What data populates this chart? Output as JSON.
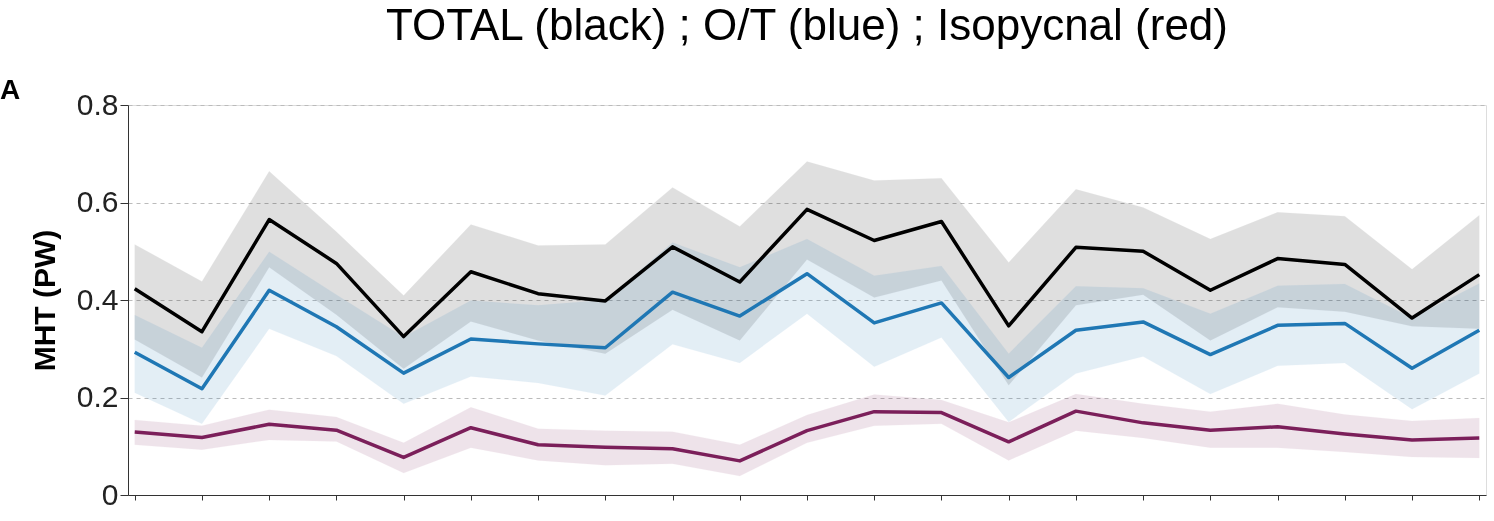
{
  "chart_data": {
    "type": "line",
    "title": "TOTAL (black) ; O/T (blue) ; Isopycnal (red)",
    "ylabel": "MHT (PW)",
    "annotations": [
      "A"
    ],
    "categories": [
      null,
      null,
      null,
      null,
      null,
      null,
      null,
      null,
      null,
      null,
      null,
      null,
      null,
      null,
      null,
      null,
      null,
      null,
      null,
      null,
      null
    ],
    "series": [
      {
        "color": "#000000",
        "values": [
          0.423,
          0.335,
          0.565,
          0.475,
          0.325,
          0.458,
          0.413,
          0.398,
          0.509,
          0.437,
          0.586,
          0.522,
          0.561,
          0.347,
          0.508,
          0.5,
          0.42,
          0.485,
          0.473,
          0.363,
          0.452
        ],
        "upper": [
          0.514,
          0.438,
          0.664,
          0.54,
          0.409,
          0.555,
          0.512,
          0.514,
          0.631,
          0.551,
          0.684,
          0.645,
          0.65,
          0.477,
          0.627,
          0.59,
          0.525,
          0.58,
          0.572,
          0.463,
          0.574
        ],
        "lower": [
          0.319,
          0.241,
          0.467,
          0.37,
          0.259,
          0.356,
          0.317,
          0.29,
          0.38,
          0.317,
          0.483,
          0.405,
          0.44,
          0.225,
          0.389,
          0.411,
          0.317,
          0.385,
          0.376,
          0.346,
          0.341
        ]
      },
      {
        "color": "#1f77b4",
        "values": [
          0.293,
          0.218,
          0.42,
          0.345,
          0.25,
          0.32,
          0.31,
          0.302,
          0.416,
          0.367,
          0.454,
          0.353,
          0.394,
          0.241,
          0.338,
          0.355,
          0.288,
          0.348,
          0.352,
          0.26,
          0.338
        ],
        "upper": [
          0.369,
          0.302,
          0.499,
          0.411,
          0.324,
          0.399,
          0.389,
          0.4,
          0.518,
          0.467,
          0.525,
          0.45,
          0.47,
          0.29,
          0.428,
          0.424,
          0.372,
          0.429,
          0.433,
          0.363,
          0.434
        ],
        "lower": [
          0.21,
          0.146,
          0.341,
          0.285,
          0.187,
          0.243,
          0.23,
          0.204,
          0.309,
          0.271,
          0.372,
          0.263,
          0.323,
          0.15,
          0.249,
          0.284,
          0.207,
          0.265,
          0.271,
          0.176,
          0.249
        ]
      },
      {
        "color": "#7b1f5a",
        "values": [
          0.129,
          0.118,
          0.145,
          0.133,
          0.077,
          0.138,
          0.103,
          0.098,
          0.095,
          0.07,
          0.132,
          0.171,
          0.169,
          0.109,
          0.172,
          0.148,
          0.133,
          0.14,
          0.125,
          0.113,
          0.117
        ],
        "upper": [
          0.154,
          0.142,
          0.175,
          0.16,
          0.107,
          0.18,
          0.136,
          0.132,
          0.13,
          0.103,
          0.164,
          0.206,
          0.195,
          0.149,
          0.207,
          0.187,
          0.171,
          0.187,
          0.165,
          0.152,
          0.158
        ],
        "lower": [
          0.103,
          0.093,
          0.113,
          0.11,
          0.045,
          0.097,
          0.071,
          0.061,
          0.064,
          0.039,
          0.107,
          0.142,
          0.146,
          0.071,
          0.132,
          0.117,
          0.097,
          0.097,
          0.088,
          0.078,
          0.076
        ]
      }
    ],
    "ylim": [
      0,
      0.8
    ],
    "yticks": [
      0,
      0.2,
      0.4,
      0.6,
      0.8
    ],
    "grid": "y",
    "tick_labels": "y",
    "marker": "none",
    "line_style": "solid"
  }
}
